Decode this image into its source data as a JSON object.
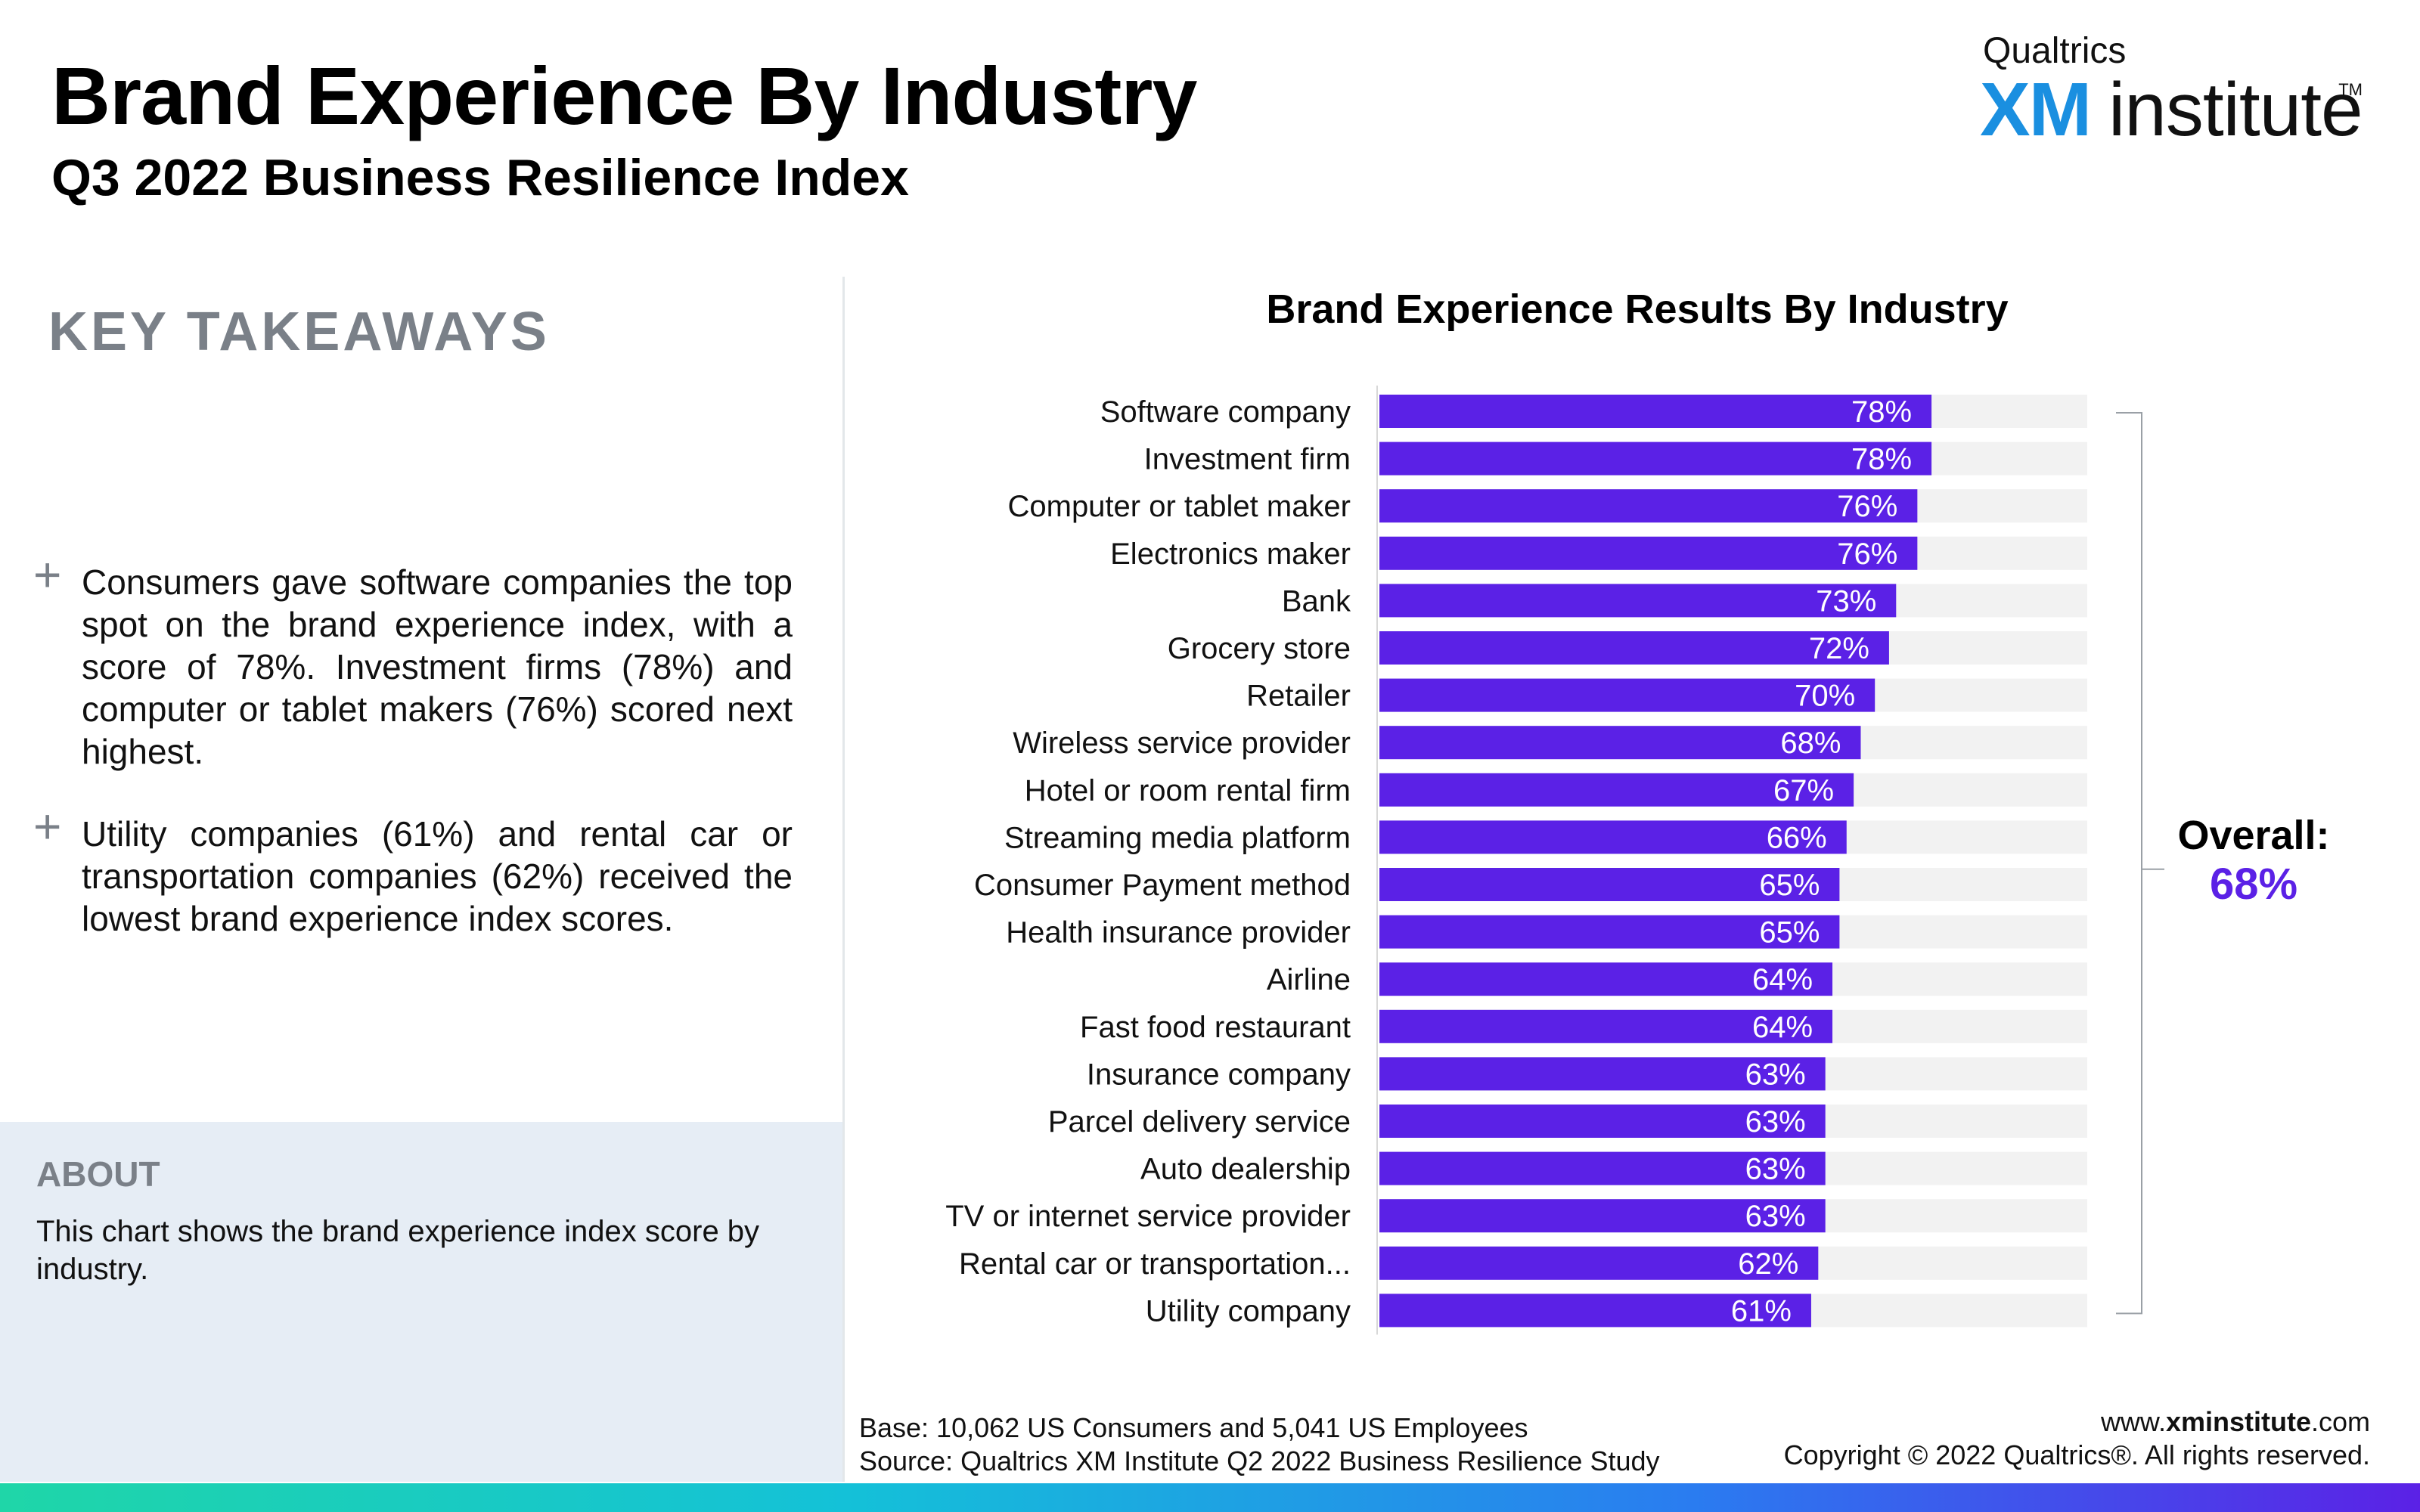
{
  "header": {
    "title": "Brand Experience By Industry",
    "subtitle": "Q3 2022 Business Resilience Index"
  },
  "logo": {
    "brand": "Qualtrics",
    "xm": "XM",
    "institute": "institute",
    "tm": "TM",
    "xm_color": "#1a8fe0"
  },
  "takeaways": {
    "heading": "KEY TAKEAWAYS",
    "bullet_symbol": "+",
    "items": [
      "Consumers gave software companies the top spot on the  brand experience index, with a score of 78%. Investment firms (78%) and computer or tablet makers (76%) scored next highest.",
      "Utility companies (61%) and rental car or transportation companies (62%) received the lowest brand experience index scores."
    ]
  },
  "about": {
    "heading": "ABOUT",
    "text": "This chart shows the brand experience index score by industry."
  },
  "chart_data": {
    "type": "bar",
    "orientation": "horizontal",
    "title": "Brand Experience Results By Industry",
    "categories": [
      "Software company",
      "Investment firm",
      "Computer or tablet maker",
      "Electronics maker",
      "Bank",
      "Grocery store",
      "Retailer",
      "Wireless service provider",
      "Hotel or room rental firm",
      "Streaming media platform",
      "Consumer Payment method",
      "Health insurance provider",
      "Airline",
      "Fast food restaurant",
      "Insurance company",
      "Parcel delivery service",
      "Auto dealership",
      "TV or internet service provider",
      "Rental car or transportation...",
      "Utility company"
    ],
    "values": [
      78,
      78,
      76,
      76,
      73,
      72,
      70,
      68,
      67,
      66,
      65,
      65,
      64,
      64,
      63,
      63,
      63,
      63,
      62,
      61
    ],
    "value_labels": [
      "78%",
      "78%",
      "76%",
      "76%",
      "73%",
      "72%",
      "70%",
      "68%",
      "67%",
      "66%",
      "65%",
      "65%",
      "64%",
      "64%",
      "63%",
      "63%",
      "63%",
      "63%",
      "62%",
      "61%"
    ],
    "xlim": [
      0,
      100
    ],
    "bar_color": "#5b21e6",
    "track_color": "#f2f2f2",
    "grid": false,
    "annotation": {
      "label": "Overall:",
      "value": "68%"
    }
  },
  "footer": {
    "base": "Base: 10,062 US Consumers and 5,041 US Employees",
    "source": "Source: Qualtrics XM Institute Q2 2022 Business Resilience Study",
    "website_prefix": "www.",
    "website_bold": "xminstitute",
    "website_suffix": ".com",
    "copyright": "Copyright © 2022 Qualtrics®. All rights reserved."
  }
}
